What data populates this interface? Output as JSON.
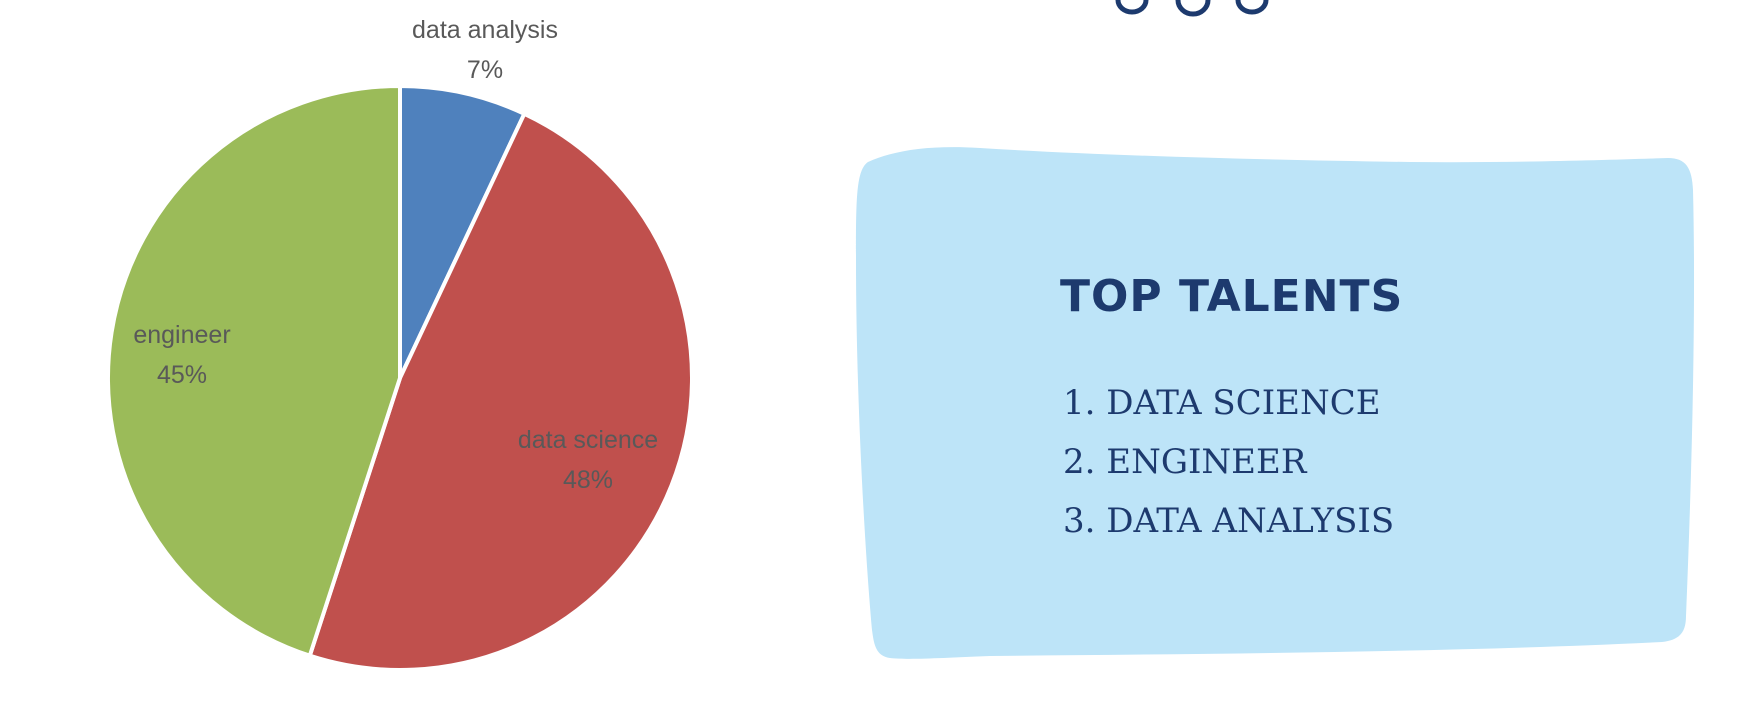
{
  "chart_data": {
    "type": "pie",
    "title": "",
    "slices": [
      {
        "label": "data analysis",
        "value": 7,
        "value_label": "7%",
        "color": "#4f81bd"
      },
      {
        "label": "data science",
        "value": 48,
        "value_label": "48%",
        "color": "#c0504d"
      },
      {
        "label": "engineer",
        "value": 45,
        "value_label": "45%",
        "color": "#9bbb59"
      }
    ],
    "start_angle": "12 o'clock",
    "direction": "clockwise",
    "slice_border_color": "#ffffff",
    "legend": "none"
  },
  "card": {
    "background_color": "#bde4f8",
    "title": "TOP TALENTS",
    "text_color": "#1d3a6e",
    "items": [
      {
        "number": "1.",
        "text": "DATA SCIENCE"
      },
      {
        "number": "2.",
        "text": "ENGINEER"
      },
      {
        "number": "3.",
        "text": "DATA ANALYSIS"
      }
    ]
  },
  "decoration": {
    "color": "#1d3a6e",
    "icon": "loop-arcs-icon"
  }
}
